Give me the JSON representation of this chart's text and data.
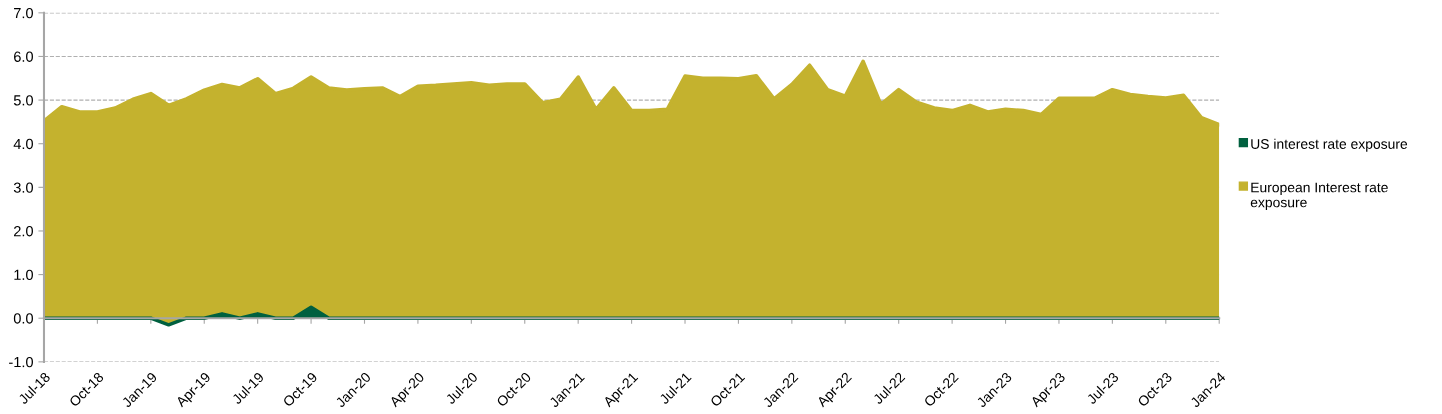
{
  "chart_data": {
    "type": "area",
    "stacked": true,
    "categories": [
      "Jul-18",
      null,
      null,
      "Oct-18",
      null,
      null,
      "Jan-19",
      null,
      null,
      "Apr-19",
      null,
      null,
      "Jul-19",
      null,
      null,
      "Oct-19",
      null,
      null,
      "Jan-20",
      null,
      null,
      "Apr-20",
      null,
      null,
      "Jul-20",
      null,
      null,
      "Oct-20",
      null,
      null,
      "Jan-21",
      null,
      null,
      "Apr-21",
      null,
      null,
      "Jul-21",
      null,
      null,
      "Oct-21",
      null,
      null,
      "Jan-22",
      null,
      null,
      "Apr-22",
      null,
      null,
      "Jul-22",
      null,
      null,
      "Oct-22",
      null,
      null,
      "Jan-23",
      null,
      null,
      "Apr-23",
      null,
      null,
      "Jul-23",
      null,
      null,
      "Oct-23",
      null,
      null,
      "Jan-24"
    ],
    "series": [
      {
        "name": "US interest rate exposure",
        "color": "#00603f",
        "values": [
          0,
          0,
          0,
          0,
          0,
          0,
          0,
          -0.15,
          0,
          0,
          0.1,
          0,
          0.1,
          0,
          0,
          0.25,
          0,
          0,
          0,
          0,
          0,
          0,
          0,
          0,
          0,
          0,
          0,
          0,
          0,
          0,
          0,
          0,
          0,
          0,
          0,
          0,
          0,
          0,
          0,
          0,
          0,
          0,
          0,
          0,
          0,
          0,
          0,
          0,
          0,
          0,
          0,
          0,
          0,
          0,
          0,
          0,
          0,
          0,
          0,
          0,
          0,
          0,
          0,
          0,
          0,
          0,
          0
        ]
      },
      {
        "name": "European Interest rate exposure",
        "color": "#c4b22e",
        "values": [
          4.52,
          4.85,
          4.73,
          4.73,
          4.82,
          5.02,
          5.15,
          5.03,
          5.03,
          5.23,
          5.26,
          5.28,
          5.39,
          5.15,
          5.27,
          5.28,
          5.28,
          5.23,
          5.26,
          5.28,
          5.08,
          5.32,
          5.34,
          5.37,
          5.4,
          5.34,
          5.37,
          5.37,
          4.94,
          5.02,
          5.53,
          4.79,
          5.28,
          4.76,
          4.76,
          4.79,
          5.55,
          5.5,
          5.5,
          5.49,
          5.56,
          5.03,
          5.36,
          5.8,
          5.24,
          5.09,
          5.89,
          4.9,
          5.24,
          4.95,
          4.82,
          4.76,
          4.88,
          4.73,
          4.79,
          4.76,
          4.67,
          5.04,
          5.04,
          5.04,
          5.24,
          5.13,
          5.08,
          5.05,
          5.11,
          4.6,
          4.44
        ]
      }
    ],
    "ylim": [
      -1,
      7
    ],
    "yticks": [
      {
        "value": -1,
        "label": "-1.0"
      },
      {
        "value": 0,
        "label": "0.0"
      },
      {
        "value": 1,
        "label": "1.0"
      },
      {
        "value": 2,
        "label": "2.0"
      },
      {
        "value": 3,
        "label": "3.0"
      },
      {
        "value": 4,
        "label": "4.0"
      },
      {
        "value": 5,
        "label": "5.0"
      },
      {
        "value": 6,
        "label": "6.0"
      },
      {
        "value": 7,
        "label": "7.0"
      }
    ],
    "grid": "y",
    "legend": "right"
  }
}
